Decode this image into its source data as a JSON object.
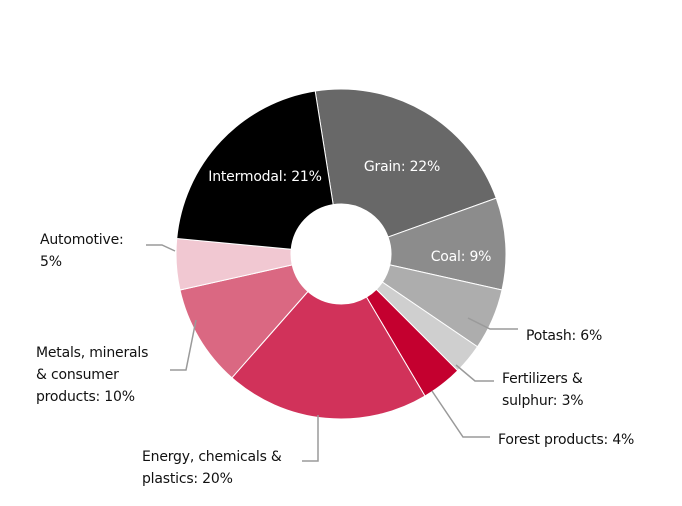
{
  "chart_data": {
    "type": "pie",
    "donut": true,
    "title": "",
    "slices": [
      {
        "label": "Grain: 22%",
        "name": "Grain",
        "value": 22,
        "color": "#686868",
        "label_color": "#ffffff",
        "inside": true
      },
      {
        "label": "Coal: 9%",
        "name": "Coal",
        "value": 9,
        "color": "#8c8c8c",
        "label_color": "#ffffff",
        "inside": true
      },
      {
        "label": "Potash: 6%",
        "name": "Potash",
        "value": 6,
        "color": "#adadad",
        "inside": false
      },
      {
        "label": "Fertilizers & sulphur: 3%",
        "label_lines": [
          "Fertilizers &",
          "sulphur: 3%"
        ],
        "name": "Fertilizers & sulphur",
        "value": 3,
        "color": "#cfcfcf",
        "inside": false
      },
      {
        "label": "Forest products: 4%",
        "name": "Forest products",
        "value": 4,
        "color": "#c4002f",
        "inside": false
      },
      {
        "label": "Energy, chemicals & plastics: 20%",
        "label_lines": [
          "Energy, chemicals &",
          "plastics: 20%"
        ],
        "name": "Energy, chemicals & plastics",
        "value": 20,
        "color": "#d1325a",
        "inside": false
      },
      {
        "label": "Metals, minerals & consumer products: 10%",
        "label_lines": [
          "Metals, minerals",
          "& consumer",
          "products: 10%"
        ],
        "name": "Metals, minerals & consumer products",
        "value": 10,
        "color": "#da6882",
        "inside": false
      },
      {
        "label": "Automotive: 5%",
        "label_lines": [
          "Automotive:",
          "5%"
        ],
        "name": "Automotive",
        "value": 5,
        "color": "#f1c8d2",
        "inside": false
      },
      {
        "label": "Intermodal: 21%",
        "name": "Intermodal",
        "value": 21,
        "color": "#000000",
        "label_color": "#ffffff",
        "inside": true
      }
    ]
  }
}
